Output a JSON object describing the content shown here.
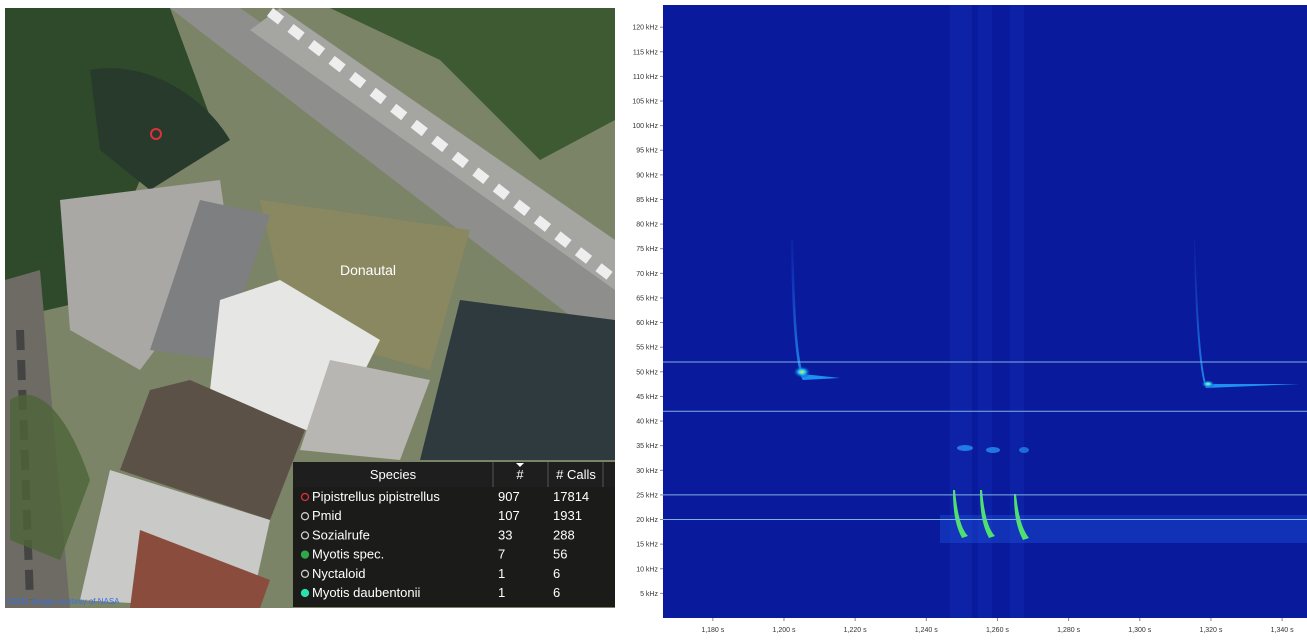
{
  "map": {
    "place_label": "Donautal",
    "copyright": "©2021 Image courtesy of NASA"
  },
  "table": {
    "headers": [
      "Species",
      "#",
      "# Calls"
    ],
    "rows": [
      {
        "species": "Pipistrellus pipistrellus",
        "count": "907",
        "calls": "17814",
        "dot": "#e0303a",
        "filled": false
      },
      {
        "species": "Pmid",
        "count": "107",
        "calls": "1931",
        "dot": "#cccccc",
        "filled": false
      },
      {
        "species": "Sozialrufe",
        "count": "33",
        "calls": "288",
        "dot": "#cccccc",
        "filled": false
      },
      {
        "species": "Myotis spec.",
        "count": "7",
        "calls": "56",
        "dot": "#2fa84a",
        "filled": true
      },
      {
        "species": "Nyctaloid",
        "count": "1",
        "calls": "6",
        "dot": "#cccccc",
        "filled": false
      },
      {
        "species": "Myotis daubentonii",
        "count": "1",
        "calls": "6",
        "dot": "#2ee0b0",
        "filled": true
      }
    ]
  },
  "spectrogram": {
    "xlim": [
      1166,
      1347
    ],
    "ylim": [
      0,
      124.5
    ],
    "yticks": [
      {
        "value": 5,
        "label": "5 kHz"
      },
      {
        "value": 10,
        "label": "10 kHz"
      },
      {
        "value": 15,
        "label": "15 kHz"
      },
      {
        "value": 20,
        "label": "20 kHz"
      },
      {
        "value": 25,
        "label": "25 kHz"
      },
      {
        "value": 30,
        "label": "30 kHz"
      },
      {
        "value": 35,
        "label": "35 kHz"
      },
      {
        "value": 40,
        "label": "40 kHz"
      },
      {
        "value": 45,
        "label": "45 kHz"
      },
      {
        "value": 50,
        "label": "50 kHz"
      },
      {
        "value": 55,
        "label": "55 kHz"
      },
      {
        "value": 60,
        "label": "60 kHz"
      },
      {
        "value": 65,
        "label": "65 kHz"
      },
      {
        "value": 70,
        "label": "70 kHz"
      },
      {
        "value": 75,
        "label": "75 kHz"
      },
      {
        "value": 80,
        "label": "80 kHz"
      },
      {
        "value": 85,
        "label": "85 kHz"
      },
      {
        "value": 90,
        "label": "90 kHz"
      },
      {
        "value": 95,
        "label": "95 kHz"
      },
      {
        "value": 100,
        "label": "100 kHz"
      },
      {
        "value": 105,
        "label": "105 kHz"
      },
      {
        "value": 110,
        "label": "110 kHz"
      },
      {
        "value": 115,
        "label": "115 kHz"
      },
      {
        "value": 120,
        "label": "120 kHz"
      }
    ],
    "xticks": [
      {
        "value": 1180,
        "label": "1,180 s"
      },
      {
        "value": 1200,
        "label": "1,200 s"
      },
      {
        "value": 1220,
        "label": "1,220 s"
      },
      {
        "value": 1240,
        "label": "1,240 s"
      },
      {
        "value": 1260,
        "label": "1,260 s"
      },
      {
        "value": 1280,
        "label": "1,280 s"
      },
      {
        "value": 1300,
        "label": "1,300 s"
      },
      {
        "value": 1320,
        "label": "1,320 s"
      },
      {
        "value": 1340,
        "label": "1,340 s"
      }
    ],
    "marker_lines": [
      52,
      42,
      25,
      20
    ],
    "marker_color": "#7fb2e0"
  }
}
